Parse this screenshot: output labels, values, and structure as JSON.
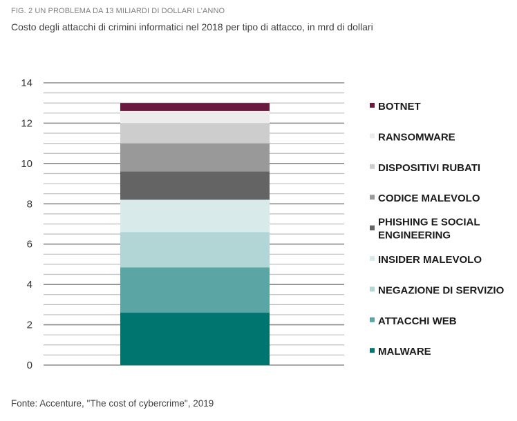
{
  "figure_label": "FIG. 2 UN PROBLEMA DA 13 MILIARDI DI DOLLARI L'ANNO",
  "subtitle": "Costo degli attacchi di crimini informatici nel 2018 per tipo di attacco, in mrd di dollari",
  "source": "Fonte: Accenture, \"The cost of cybercrime\", 2019",
  "chart_data": {
    "type": "bar",
    "stacked": true,
    "categories": [
      ""
    ],
    "ylim": [
      0,
      14
    ],
    "yticks": [
      "0",
      "2",
      "4",
      "6",
      "8",
      "10",
      "12",
      "14"
    ],
    "grid": true,
    "legend_position": "right",
    "series": [
      {
        "name": "MALWARE",
        "values": [
          2.6
        ],
        "color": "#00756f"
      },
      {
        "name": "ATTACCHI WEB",
        "values": [
          2.25
        ],
        "color": "#5ba5a5"
      },
      {
        "name": "NEGAZIONE DI SERVIZIO",
        "values": [
          1.75
        ],
        "color": "#b2d5d5"
      },
      {
        "name": "INSIDER MALEVOLO",
        "values": [
          1.6
        ],
        "color": "#d9eaea"
      },
      {
        "name": "PHISHING E SOCIAL ENGINEERING",
        "values": [
          1.4
        ],
        "color": "#646464"
      },
      {
        "name": "CODICE MALEVOLO",
        "values": [
          1.4
        ],
        "color": "#999999"
      },
      {
        "name": "DISPOSITIVI RUBATI",
        "values": [
          1.0
        ],
        "color": "#cdcdcd"
      },
      {
        "name": "RANSOMWARE",
        "values": [
          0.6
        ],
        "color": "#ececec"
      },
      {
        "name": "BOTNET",
        "values": [
          0.4
        ],
        "color": "#6a1a3e"
      }
    ]
  }
}
